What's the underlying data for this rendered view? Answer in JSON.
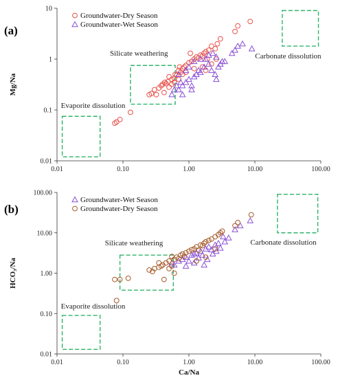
{
  "chart_data": [
    {
      "panel_label": "(a)",
      "type": "scatter",
      "xscale": "log",
      "yscale": "log",
      "xlim": [
        0.01,
        100
      ],
      "ylim": [
        0.01,
        10
      ],
      "xticks": [
        "0.01",
        "0.10",
        "1.00",
        "10.00",
        "100.00"
      ],
      "yticks": [
        "0.01",
        "0.1",
        "1",
        "10"
      ],
      "ylabel": "Mg/Na",
      "legend": [
        "Groundwater-Dry Season",
        "Groundwater-Wet Season"
      ],
      "legend_position": "top-left",
      "colors": {
        "dry": "#e8504a",
        "wet": "#8a4fd6",
        "box": "#2fb36a"
      },
      "zones": [
        {
          "label": "Evaporite dissolution",
          "x": [
            0.012,
            0.045
          ],
          "y": [
            0.012,
            0.075
          ]
        },
        {
          "label": "Silicate weathering",
          "x": [
            0.13,
            0.62
          ],
          "y": [
            0.13,
            0.75
          ]
        },
        {
          "label": "Carbonate dissolution",
          "x": [
            26,
            92
          ],
          "y": [
            1.8,
            9
          ]
        }
      ],
      "series": [
        {
          "name": "Groundwater-Dry Season",
          "marker": "circle",
          "points": [
            [
              0.075,
              0.055
            ],
            [
              0.08,
              0.058
            ],
            [
              0.09,
              0.065
            ],
            [
              0.13,
              0.09
            ],
            [
              0.25,
              0.2
            ],
            [
              0.27,
              0.21
            ],
            [
              0.3,
              0.25
            ],
            [
              0.35,
              0.27
            ],
            [
              0.38,
              0.3
            ],
            [
              0.4,
              0.32
            ],
            [
              0.43,
              0.35
            ],
            [
              0.45,
              0.33
            ],
            [
              0.48,
              0.36
            ],
            [
              0.5,
              0.45
            ],
            [
              0.55,
              0.4
            ],
            [
              0.6,
              0.42
            ],
            [
              0.62,
              0.5
            ],
            [
              0.65,
              0.48
            ],
            [
              0.7,
              0.6
            ],
            [
              0.75,
              0.55
            ],
            [
              0.8,
              0.65
            ],
            [
              0.85,
              0.7
            ],
            [
              0.9,
              0.75
            ],
            [
              1.0,
              0.85
            ],
            [
              1.1,
              0.9
            ],
            [
              1.2,
              1.0
            ],
            [
              1.3,
              1.1
            ],
            [
              1.4,
              1.05
            ],
            [
              1.5,
              1.2
            ],
            [
              1.6,
              1.15
            ],
            [
              1.7,
              1.3
            ],
            [
              1.8,
              1.4
            ],
            [
              2.0,
              1.5
            ],
            [
              2.2,
              1.8
            ],
            [
              2.5,
              1.6
            ],
            [
              2.7,
              2.0
            ],
            [
              3.0,
              2.5
            ],
            [
              0.7,
              0.4
            ],
            [
              0.9,
              0.55
            ],
            [
              1.2,
              0.65
            ],
            [
              1.6,
              0.7
            ],
            [
              1.8,
              0.6
            ],
            [
              2.2,
              0.8
            ],
            [
              2.6,
              1.0
            ],
            [
              0.5,
              0.28
            ],
            [
              0.55,
              0.32
            ],
            [
              0.42,
              0.22
            ],
            [
              0.32,
              0.2
            ],
            [
              5.0,
              3.5
            ],
            [
              5.5,
              4.5
            ],
            [
              8.5,
              5.5
            ],
            [
              1.9,
              1.0
            ],
            [
              0.8,
              0.5
            ],
            [
              0.6,
              0.35
            ],
            [
              0.72,
              0.7
            ],
            [
              1.05,
              1.3
            ]
          ]
        },
        {
          "name": "Groundwater-Wet Season",
          "marker": "triangle",
          "points": [
            [
              0.55,
              0.2
            ],
            [
              0.6,
              0.25
            ],
            [
              0.65,
              0.3
            ],
            [
              0.7,
              0.25
            ],
            [
              0.75,
              0.35
            ],
            [
              0.8,
              0.3
            ],
            [
              0.9,
              0.35
            ],
            [
              1.0,
              0.4
            ],
            [
              1.1,
              0.3
            ],
            [
              1.2,
              0.45
            ],
            [
              1.3,
              0.5
            ],
            [
              1.4,
              0.6
            ],
            [
              1.5,
              0.55
            ],
            [
              1.7,
              0.7
            ],
            [
              2.0,
              0.8
            ],
            [
              2.2,
              0.6
            ],
            [
              2.5,
              0.5
            ],
            [
              2.8,
              0.7
            ],
            [
              3.0,
              0.8
            ],
            [
              3.2,
              0.9
            ],
            [
              1.8,
              1.0
            ],
            [
              2.0,
              1.2
            ],
            [
              2.3,
              1.3
            ],
            [
              2.6,
              1.1
            ],
            [
              1.5,
              1.0
            ],
            [
              1.2,
              0.9
            ],
            [
              1.0,
              0.7
            ],
            [
              0.9,
              0.6
            ],
            [
              5.0,
              1.5
            ],
            [
              5.5,
              1.8
            ],
            [
              6.5,
              2.0
            ],
            [
              4.5,
              1.3
            ],
            [
              9.0,
              1.6
            ],
            [
              0.7,
              0.5
            ],
            [
              0.8,
              0.2
            ],
            [
              1.1,
              0.25
            ],
            [
              3.5,
              0.9
            ],
            [
              2.6,
              0.4
            ]
          ]
        }
      ]
    },
    {
      "panel_label": "(b)",
      "type": "scatter",
      "xscale": "log",
      "yscale": "log",
      "xlim": [
        0.01,
        100
      ],
      "ylim": [
        0.01,
        100
      ],
      "xticks": [
        "0.01",
        "0.10",
        "1.00",
        "10.00",
        "100.00"
      ],
      "yticks": [
        "0.01",
        "0.10",
        "1.00",
        "10.00",
        "100.00"
      ],
      "xlabel": "Ca/Na",
      "ylabel": "HCO₃/Na",
      "legend": [
        "Groundwater-Wet Season",
        "Groundwater-Dry Season"
      ],
      "legend_position": "top-left",
      "colors": {
        "dry": "#a65a2a",
        "wet": "#8a4fd6",
        "box": "#2fb36a"
      },
      "zones": [
        {
          "label": "Evaporite dissolution",
          "x": [
            0.012,
            0.045
          ],
          "y": [
            0.013,
            0.09
          ]
        },
        {
          "label": "Silicate weathering",
          "x": [
            0.09,
            0.58
          ],
          "y": [
            0.38,
            2.8
          ]
        },
        {
          "label": "Carbonate dissolution",
          "x": [
            22,
            90
          ],
          "y": [
            10,
            90
          ]
        }
      ],
      "series": [
        {
          "name": "Groundwater-Wet Season",
          "marker": "triangle",
          "points": [
            [
              0.55,
              1.8
            ],
            [
              0.6,
              1.6
            ],
            [
              0.7,
              2.0
            ],
            [
              0.8,
              2.2
            ],
            [
              0.9,
              2.5
            ],
            [
              1.0,
              2.0
            ],
            [
              1.1,
              2.8
            ],
            [
              1.2,
              3.0
            ],
            [
              1.3,
              3.2
            ],
            [
              1.4,
              2.4
            ],
            [
              1.5,
              3.5
            ],
            [
              1.6,
              2.8
            ],
            [
              1.8,
              4.0
            ],
            [
              2.0,
              4.5
            ],
            [
              2.2,
              3.8
            ],
            [
              2.5,
              5.0
            ],
            [
              2.8,
              5.5
            ],
            [
              3.0,
              4.2
            ],
            [
              3.5,
              6.0
            ],
            [
              4.0,
              7.5
            ],
            [
              2.6,
              3.5
            ],
            [
              1.9,
              2.2
            ],
            [
              1.2,
              1.8
            ],
            [
              6.0,
              15
            ],
            [
              8.5,
              20
            ],
            [
              5.0,
              12
            ],
            [
              3.3,
              8
            ],
            [
              0.9,
              1.5
            ],
            [
              2.3,
              3.0
            ],
            [
              1.7,
              1.6
            ]
          ]
        },
        {
          "name": "Groundwater-Dry Season",
          "marker": "circle",
          "points": [
            [
              0.075,
              0.7
            ],
            [
              0.08,
              0.21
            ],
            [
              0.09,
              0.7
            ],
            [
              0.12,
              0.75
            ],
            [
              0.25,
              1.2
            ],
            [
              0.3,
              1.3
            ],
            [
              0.35,
              1.4
            ],
            [
              0.38,
              1.5
            ],
            [
              0.4,
              1.6
            ],
            [
              0.42,
              0.7
            ],
            [
              0.45,
              1.8
            ],
            [
              0.5,
              2.0
            ],
            [
              0.55,
              1.5
            ],
            [
              0.6,
              2.2
            ],
            [
              0.65,
              2.5
            ],
            [
              0.7,
              2.3
            ],
            [
              0.75,
              2.8
            ],
            [
              0.8,
              3.0
            ],
            [
              0.85,
              2.6
            ],
            [
              0.9,
              3.2
            ],
            [
              1.0,
              3.5
            ],
            [
              1.1,
              3.8
            ],
            [
              1.2,
              4.0
            ],
            [
              1.3,
              4.5
            ],
            [
              1.4,
              3.7
            ],
            [
              1.5,
              5.0
            ],
            [
              1.6,
              4.8
            ],
            [
              1.7,
              5.5
            ],
            [
              1.8,
              6.0
            ],
            [
              2.0,
              6.5
            ],
            [
              2.2,
              7.0
            ],
            [
              2.5,
              8.0
            ],
            [
              2.8,
              9.0
            ],
            [
              3.0,
              10
            ],
            [
              0.6,
              1.0
            ],
            [
              0.5,
              1.3
            ],
            [
              1.3,
              2.0
            ],
            [
              1.8,
              2.5
            ],
            [
              2.5,
              4.0
            ],
            [
              5.0,
              15
            ],
            [
              5.5,
              18
            ],
            [
              8.8,
              28
            ],
            [
              3.2,
              11
            ],
            [
              0.35,
              1.8
            ],
            [
              0.55,
              2.6
            ],
            [
              0.28,
              1.1
            ]
          ]
        }
      ]
    }
  ]
}
